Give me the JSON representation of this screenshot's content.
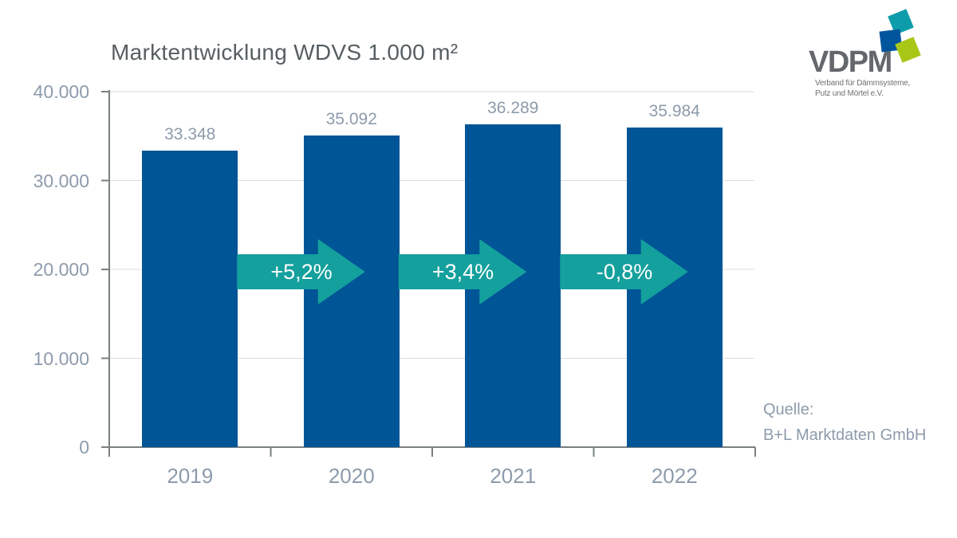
{
  "title": "Marktentwicklung WDVS 1.000 m²",
  "logo": {
    "name": "VDPM",
    "subtitle_line1": "Verband für Dämmsysteme,",
    "subtitle_line2": "Putz und Mörtel e.V.",
    "square_colors": {
      "blue": "#00559c",
      "teal": "#0d9daa",
      "green": "#a9c717"
    },
    "text_color": "#64676b"
  },
  "source": {
    "label": "Quelle:",
    "name": "B+L Marktdaten GmbH"
  },
  "chart_data": {
    "type": "bar",
    "title": "Marktentwicklung WDVS 1.000 m²",
    "categories": [
      "2019",
      "2020",
      "2021",
      "2022"
    ],
    "values": [
      33348,
      35092,
      36289,
      35984
    ],
    "value_labels": [
      "33.348",
      "35.092",
      "36.289",
      "35.984"
    ],
    "change_labels": [
      "+5,2%",
      "+3,4%",
      "-0,8%"
    ],
    "ylim": [
      0,
      40000
    ],
    "yticks": [
      0,
      10000,
      20000,
      30000,
      40000
    ],
    "ytick_labels": [
      "0",
      "10.000",
      "20.000",
      "30.000",
      "40.000"
    ],
    "xlabel": "",
    "ylabel": "",
    "grid": true,
    "legend": false,
    "bar_color": "#005596",
    "arrow_color": "#14a09d",
    "grid_color": "#d9dde1",
    "axis_color": "#7a7f81",
    "tick_label_color": "#8d9bab"
  }
}
